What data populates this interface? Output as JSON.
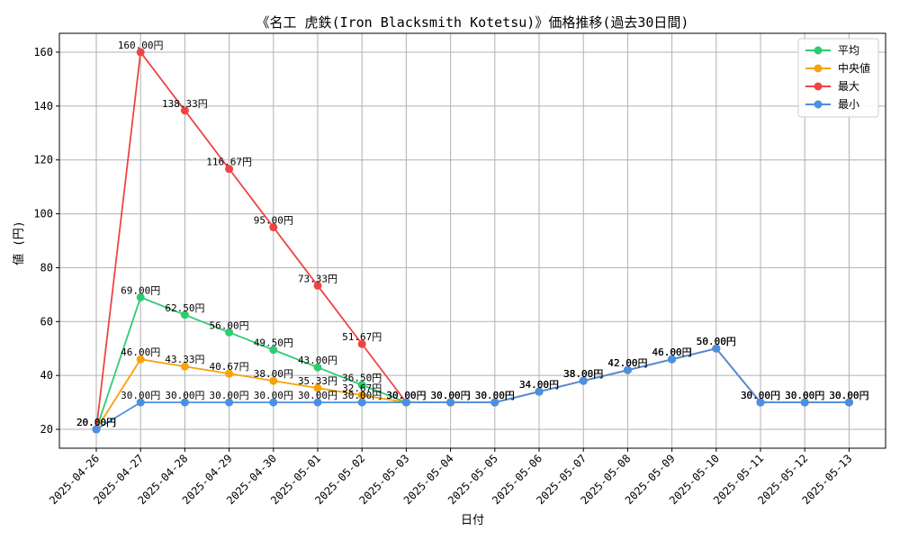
{
  "chart_data": {
    "type": "line",
    "title": "《名工 虎鉄(Iron Blacksmith Kotetsu)》価格推移(過去30日間)",
    "xlabel": "日付",
    "ylabel": "値 (円)",
    "ylim": [
      13,
      167
    ],
    "yticks": [
      20,
      40,
      60,
      80,
      100,
      120,
      140,
      160
    ],
    "grid": true,
    "legend_position": "top-right",
    "categories": [
      "2025-04-26",
      "2025-04-27",
      "2025-04-28",
      "2025-04-29",
      "2025-04-30",
      "2025-05-01",
      "2025-05-02",
      "2025-05-03",
      "2025-05-04",
      "2025-05-05",
      "2025-05-06",
      "2025-05-07",
      "2025-05-08",
      "2025-05-09",
      "2025-05-10",
      "2025-05-11",
      "2025-05-12",
      "2025-05-13"
    ],
    "series": [
      {
        "name": "平均",
        "color": "#2ecc71",
        "values": [
          20,
          69,
          62.5,
          56,
          49.5,
          43,
          36.5,
          30,
          30,
          30,
          34,
          38,
          42,
          46,
          50,
          30,
          30,
          30
        ],
        "labels": [
          "20.00円",
          "69.00円",
          "62.50円",
          "56.00円",
          "49.50円",
          "43.00円",
          "36.50円",
          "30.00円",
          "30.00円",
          "30.00円",
          "34.00円",
          "38.00円",
          "42.00円",
          "46.00円",
          "50.00円",
          "30.00円",
          "30.00円",
          "30.00円"
        ]
      },
      {
        "name": "中央値",
        "color": "#f5a30a",
        "values": [
          20,
          46,
          43.33,
          40.67,
          38,
          35.33,
          32.67,
          30,
          30,
          30,
          34,
          38,
          42,
          46,
          50,
          30,
          30,
          30
        ],
        "labels": [
          "20.00円",
          "46.00円",
          "43.33円",
          "40.67円",
          "38.00円",
          "35.33円",
          "32.67円",
          "30.00円",
          "30.00円",
          "30.00円",
          "34.00円",
          "38.00円",
          "42.00円",
          "46.00円",
          "50.00円",
          "30.00円",
          "30.00円",
          "30.00円"
        ]
      },
      {
        "name": "最大",
        "color": "#ef4444",
        "values": [
          20,
          160,
          138.33,
          116.67,
          95,
          73.33,
          51.67,
          30,
          30,
          30,
          34,
          38,
          42,
          46,
          50,
          30,
          30,
          30
        ],
        "labels": [
          "20.00円",
          "160.00円",
          "138.33円",
          "116.67円",
          "95.00円",
          "73.33円",
          "51.67円",
          "30.00円",
          "30.00円",
          "30.00円",
          "34.00円",
          "38.00円",
          "42.00円",
          "46.00円",
          "50.00円",
          "30.00円",
          "30.00円",
          "30.00円"
        ]
      },
      {
        "name": "最小",
        "color": "#4a90e2",
        "values": [
          20,
          30,
          30,
          30,
          30,
          30,
          30,
          30,
          30,
          30,
          34,
          38,
          42,
          46,
          50,
          30,
          30,
          30
        ],
        "labels": [
          "20.00円",
          "30.00円",
          "30.00円",
          "30.00円",
          "30.00円",
          "30.00円",
          "30.00円",
          "30.00円",
          "30.00円",
          "30.00円",
          "34.00円",
          "38.00円",
          "42.00円",
          "46.00円",
          "50.00円",
          "30.00円",
          "30.00円",
          "30.00円"
        ]
      }
    ]
  }
}
